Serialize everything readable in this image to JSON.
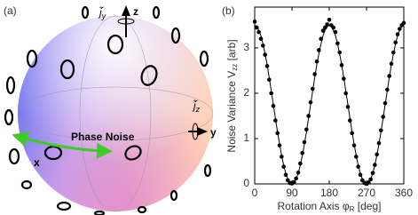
{
  "diagram": {
    "panel_label": "(a)",
    "axis_z": "z",
    "axis_y": "y",
    "axis_x": "x",
    "jy": {
      "symbol": "j̃",
      "sub": "y"
    },
    "jz": {
      "symbol": "j̃",
      "sub": "z"
    },
    "phase_noise": "Phase Noise"
  },
  "chart_data": {
    "type": "scatter",
    "panel_label": "(b)",
    "x_label": {
      "text": "Rotation Axis φ",
      "sub": "R",
      "unit": " [deg]"
    },
    "y_label": {
      "text": "Noise Variance V",
      "sub": "zz",
      "unit": " [arb]"
    },
    "x": [
      0,
      5,
      10,
      15,
      20,
      25,
      30,
      35,
      40,
      45,
      50,
      55,
      60,
      65,
      70,
      75,
      80,
      85,
      90,
      95,
      100,
      105,
      110,
      115,
      120,
      125,
      130,
      135,
      140,
      145,
      150,
      155,
      160,
      165,
      170,
      175,
      180,
      185,
      190,
      195,
      200,
      205,
      210,
      215,
      220,
      225,
      230,
      235,
      240,
      245,
      250,
      255,
      260,
      265,
      270,
      275,
      280,
      285,
      290,
      295,
      300,
      305,
      310,
      315,
      320,
      325,
      330,
      335,
      340,
      345,
      350,
      355,
      360
    ],
    "series": [
      {
        "mode": "markers",
        "color": "#000000",
        "values": [
          3.58,
          3.45,
          3.35,
          3.2,
          3.05,
          2.85,
          2.6,
          2.3,
          2.0,
          1.72,
          1.4,
          1.12,
          0.85,
          0.6,
          0.38,
          0.2,
          0.08,
          0.02,
          0.01,
          0.04,
          0.12,
          0.25,
          0.45,
          0.68,
          0.92,
          1.2,
          1.5,
          1.8,
          2.1,
          2.42,
          2.7,
          2.95,
          3.2,
          3.38,
          3.45,
          3.52,
          3.62,
          3.5,
          3.45,
          3.35,
          3.1,
          2.9,
          2.62,
          2.32,
          2.0,
          1.7,
          1.4,
          1.12,
          0.85,
          0.6,
          0.38,
          0.2,
          0.08,
          0.02,
          0.0,
          0.03,
          0.1,
          0.24,
          0.42,
          0.65,
          0.9,
          1.18,
          1.48,
          1.78,
          2.08,
          2.38,
          2.65,
          2.9,
          3.12,
          3.3,
          3.42,
          3.5,
          3.55
        ]
      },
      {
        "mode": "line",
        "color": "#000000",
        "values": [
          3.5,
          3.47,
          3.39,
          3.27,
          3.09,
          2.87,
          2.63,
          2.35,
          2.05,
          1.75,
          1.45,
          1.15,
          0.88,
          0.63,
          0.41,
          0.23,
          0.11,
          0.03,
          0,
          0.03,
          0.11,
          0.23,
          0.41,
          0.63,
          0.88,
          1.15,
          1.45,
          1.75,
          2.05,
          2.35,
          2.63,
          2.87,
          3.09,
          3.27,
          3.39,
          3.47,
          3.5,
          3.47,
          3.39,
          3.27,
          3.09,
          2.87,
          2.63,
          2.35,
          2.05,
          1.75,
          1.45,
          1.15,
          0.88,
          0.63,
          0.41,
          0.23,
          0.11,
          0.03,
          0,
          0.03,
          0.11,
          0.23,
          0.41,
          0.63,
          0.88,
          1.15,
          1.45,
          1.75,
          2.05,
          2.35,
          2.63,
          2.87,
          3.09,
          3.27,
          3.39,
          3.47,
          3.5
        ]
      }
    ],
    "xlim": [
      0,
      360
    ],
    "xticks": [
      0,
      90,
      180,
      270,
      360
    ],
    "ylim": [
      0,
      3.9
    ],
    "yticks": [
      0,
      1,
      2,
      3
    ]
  }
}
